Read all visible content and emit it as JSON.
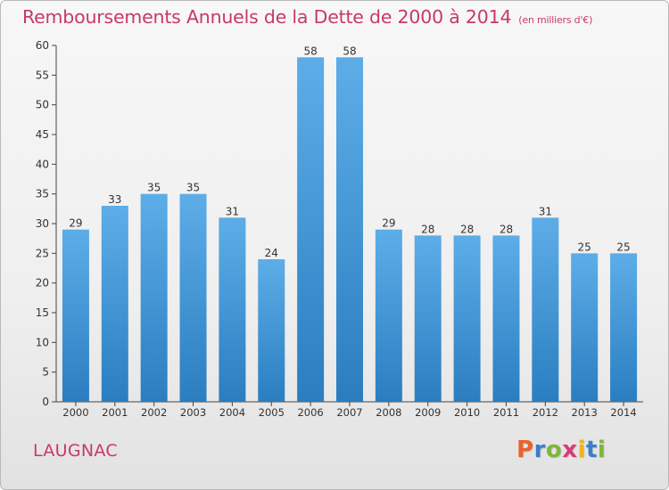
{
  "header": {
    "title": "Remboursements Annuels de la Dette de 2000 à 2014",
    "subtitle": "(en milliers d'€)"
  },
  "footer": {
    "city": "LAUGNAC",
    "logo": {
      "letters": [
        "P",
        "r",
        "o",
        "x",
        "i",
        "t",
        "i"
      ],
      "colors": [
        "#e8632b",
        "#3a7fc8",
        "#7fb53a",
        "#d93a7a",
        "#f2b21e",
        "#3a7fc8",
        "#7fb53a"
      ]
    }
  },
  "chart_data": {
    "type": "bar",
    "categories": [
      "2000",
      "2001",
      "2002",
      "2003",
      "2004",
      "2005",
      "2006",
      "2007",
      "2008",
      "2009",
      "2010",
      "2011",
      "2012",
      "2013",
      "2014"
    ],
    "values": [
      29,
      33,
      35,
      35,
      31,
      24,
      58,
      58,
      29,
      28,
      28,
      28,
      31,
      25,
      25
    ],
    "title": "Remboursements Annuels de la Dette de 2000 à 2014",
    "xlabel": "",
    "ylabel": "",
    "ylim": [
      0,
      60
    ],
    "yticks": [
      0,
      5,
      10,
      15,
      20,
      25,
      30,
      35,
      40,
      45,
      50,
      55,
      60
    ],
    "grid": false,
    "bar_color_top": "#5dade8",
    "bar_color_bottom": "#2a7ec0"
  }
}
